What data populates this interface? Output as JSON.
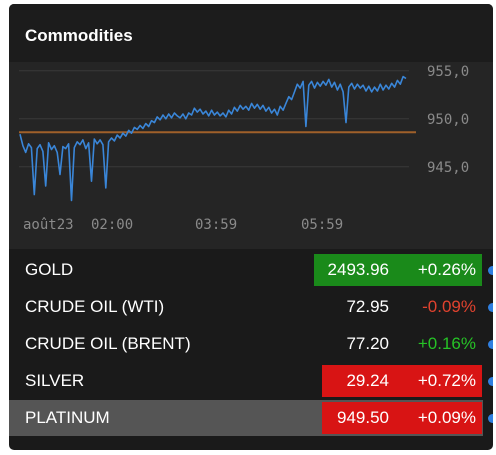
{
  "widget": {
    "title": "Commodities"
  },
  "chart_data": {
    "type": "line",
    "x_ticks": [
      "août23",
      "02:00",
      "03:59",
      "05:59"
    ],
    "y_ticks": [
      945.0,
      950.0,
      955.0
    ],
    "y_tick_labels": [
      "945,0",
      "950,0",
      "955,0"
    ],
    "ylim": [
      940.5,
      955.5
    ],
    "reference_line": 948.6,
    "colors": {
      "line": "#3a86d8",
      "reference": "#a0602a",
      "grid": "#3a3a3a",
      "tick_text": "#8a8a8a"
    },
    "series": [
      {
        "values": [
          948.4,
          947.2,
          946.5,
          947.4,
          947.0,
          942.1,
          946.9,
          947.3,
          946.6,
          943.0,
          947.5,
          946.8,
          947.2,
          946.5,
          944.2,
          947.1,
          946.9,
          947.4,
          941.5,
          947.0,
          947.6,
          947.3,
          947.8,
          946.9,
          947.5,
          943.5,
          947.9,
          947.4,
          947.8,
          947.3,
          942.8,
          947.6,
          948.0,
          947.7,
          948.3,
          948.0,
          948.5,
          948.2,
          948.8,
          948.5,
          949.1,
          948.9,
          949.3,
          949.0,
          949.5,
          949.2,
          949.8,
          949.6,
          950.2,
          949.9,
          950.4,
          950.0,
          950.5,
          950.1,
          950.6,
          950.3,
          950.1,
          950.5,
          950.0,
          950.6,
          950.4,
          951.1,
          950.7,
          951.0,
          950.5,
          950.8,
          950.3,
          950.9,
          950.4,
          950.7,
          950.3,
          950.6,
          950.2,
          950.9,
          950.5,
          951.2,
          950.8,
          951.4,
          951.0,
          951.3,
          950.9,
          951.6,
          951.1,
          951.5,
          951.0,
          951.4,
          950.8,
          951.2,
          950.6,
          951.0,
          950.4,
          951.3,
          950.9,
          951.6,
          952.3,
          952.0,
          952.8,
          953.6,
          953.2,
          953.9,
          949.2,
          953.5,
          953.9,
          953.2,
          953.8,
          953.4,
          953.9,
          953.5,
          954.1,
          953.3,
          953.8,
          953.0,
          953.6,
          952.8,
          949.6,
          953.3,
          953.7,
          953.1,
          953.6,
          953.2,
          953.5,
          952.9,
          953.4,
          952.8,
          953.3,
          952.9,
          953.6,
          953.0,
          953.5,
          953.1,
          953.7,
          953.3,
          954.0,
          953.6,
          954.4,
          954.2
        ]
      }
    ]
  },
  "rows": [
    {
      "name": "GOLD",
      "price": "2493.96",
      "change": "+0.26%",
      "direction": "up",
      "price_bg": "#1a8a1a",
      "change_bg": "#1a8a1a",
      "highlighted": true,
      "selected": false
    },
    {
      "name": "CRUDE OIL (WTI)",
      "price": "72.95",
      "change": "-0.09%",
      "direction": "down",
      "price_bg": "",
      "change_bg": "",
      "highlighted": false,
      "selected": false
    },
    {
      "name": "CRUDE OIL (BRENT)",
      "price": "77.20",
      "change": "+0.16%",
      "direction": "up",
      "price_bg": "",
      "change_bg": "",
      "highlighted": false,
      "selected": false
    },
    {
      "name": "SILVER",
      "price": "29.24",
      "change": "+0.72%",
      "direction": "up",
      "price_bg": "#d81414",
      "change_bg": "#d81414",
      "highlighted": true,
      "selected": false
    },
    {
      "name": "PLATINUM",
      "price": "949.50",
      "change": "+0.09%",
      "direction": "up",
      "price_bg": "#d81414",
      "change_bg": "#d81414",
      "highlighted": true,
      "selected": true
    }
  ]
}
